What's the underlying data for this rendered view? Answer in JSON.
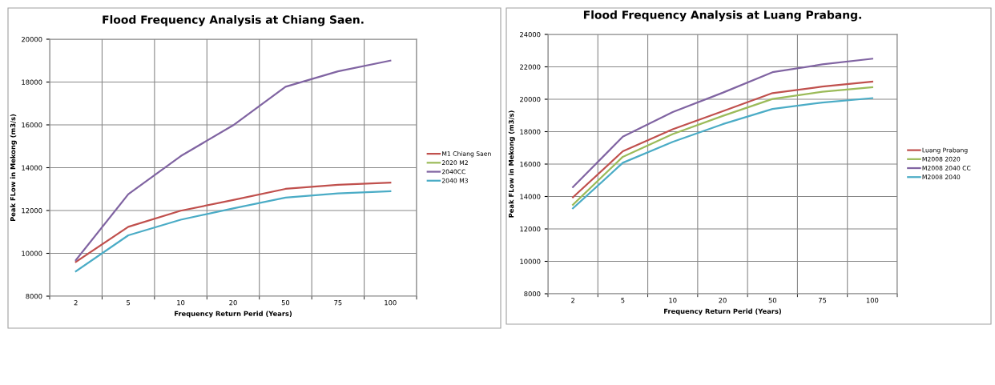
{
  "chart_data": [
    {
      "type": "line",
      "title": "Flood Frequency Analysis at Chiang Saen.",
      "xlabel": "Frequency Return Perid (Years)",
      "ylabel": "Peak FLow in Mekong (m3/s)",
      "categories": [
        "2",
        "5",
        "10",
        "20",
        "50",
        "75",
        "100"
      ],
      "series": [
        {
          "name": "M1 Chiang Saen",
          "color": "#c0504d",
          "values": [
            9600,
            11240,
            11990,
            12490,
            13010,
            13200,
            13300
          ]
        },
        {
          "name": "2020 M2",
          "color": "#9bbb59",
          "values": [
            null,
            null,
            null,
            null,
            null,
            null,
            null
          ]
        },
        {
          "name": "2040CC",
          "color": "#8064a2",
          "values": [
            9680,
            12760,
            14540,
            15980,
            17780,
            18500,
            19000
          ]
        },
        {
          "name": "2040 M3",
          "color": "#4bacc6",
          "values": [
            9160,
            10840,
            11570,
            12100,
            12600,
            12800,
            12900
          ]
        }
      ],
      "ylim": [
        8000,
        20000
      ],
      "yticks": [
        8000,
        10000,
        12000,
        14000,
        16000,
        18000,
        20000
      ],
      "grid": true,
      "legend": "right",
      "marker": "none",
      "line_style": "solid"
    },
    {
      "type": "line",
      "title": "Flood Frequency Analysis at Luang Prabang.",
      "xlabel": "Frequency Return Perid (Years)",
      "ylabel": "Peak FLow in Mekong (m3/s)",
      "categories": [
        "2",
        "5",
        "10",
        "20",
        "50",
        "75",
        "100"
      ],
      "series": [
        {
          "name": "Luang Prabang",
          "color": "#c0504d",
          "values": [
            13950,
            16790,
            18150,
            19260,
            20380,
            20780,
            21090
          ]
        },
        {
          "name": "M2008 2020",
          "color": "#9bbb59",
          "values": [
            13490,
            16450,
            17850,
            18970,
            20020,
            20460,
            20740
          ]
        },
        {
          "name": "M2008 2040 CC",
          "color": "#8064a2",
          "values": [
            14580,
            17690,
            19210,
            20400,
            21670,
            22150,
            22500
          ]
        },
        {
          "name": "M2008 2040",
          "color": "#4bacc6",
          "values": [
            13270,
            16080,
            17370,
            18460,
            19400,
            19800,
            20070
          ]
        }
      ],
      "ylim": [
        8000,
        24000
      ],
      "yticks": [
        8000,
        10000,
        12000,
        14000,
        16000,
        18000,
        20000,
        22000,
        24000
      ],
      "grid": true,
      "legend": "right",
      "marker": "none",
      "line_style": "solid"
    }
  ]
}
